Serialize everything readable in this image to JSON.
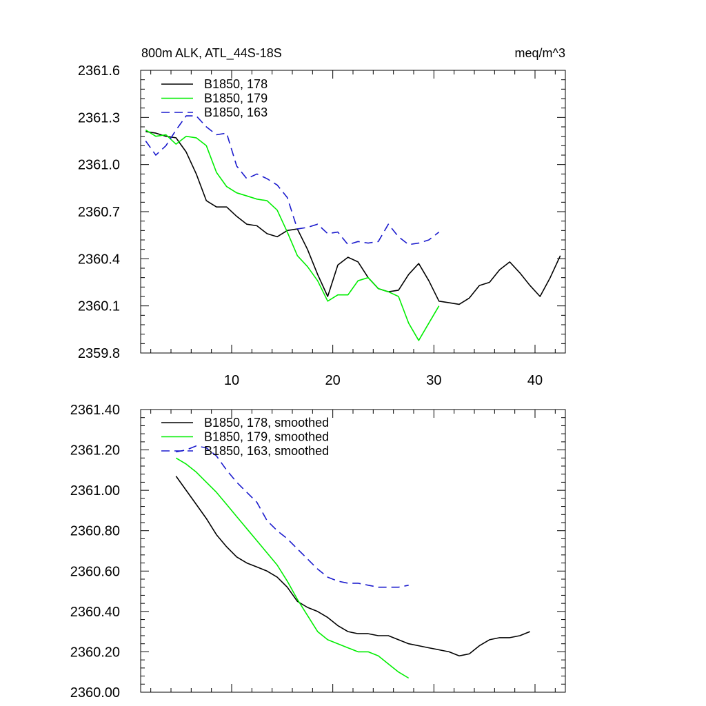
{
  "chart_data": [
    {
      "type": "line",
      "title": "800m ALK, ATL_44S-18S",
      "units": "meq/m^3",
      "xlim": [
        1,
        43
      ],
      "ylim": [
        2359.8,
        2361.6
      ],
      "xticks": [
        10,
        20,
        30,
        40
      ],
      "xtick_labels": [
        "10",
        "20",
        "30",
        "40"
      ],
      "yticks": [
        2359.8,
        2360.1,
        2360.4,
        2360.7,
        2361.0,
        2361.3,
        2361.6
      ],
      "ytick_labels": [
        "2359.8",
        "2360.1",
        "2360.4",
        "2360.7",
        "2361.0",
        "2361.3",
        "2361.6"
      ],
      "legend_position": "top-left",
      "series": [
        {
          "name": "B1850, 178",
          "color": "#000000",
          "dash": "solid",
          "x": [
            1.5,
            2.5,
            3.5,
            4.5,
            5.5,
            6.5,
            7.5,
            8.5,
            9.5,
            10.5,
            11.5,
            12.5,
            13.5,
            14.5,
            15.5,
            16.5,
            17.5,
            18.5,
            19.5,
            20.5,
            21.5,
            22.5,
            23.5,
            24.5,
            25.5,
            26.5,
            27.5,
            28.5,
            29.5,
            30.5,
            31.5,
            32.5,
            33.5,
            34.5,
            35.5,
            36.5,
            37.5,
            38.5,
            39.5,
            40.5,
            41.5,
            42.5
          ],
          "values": [
            2361.21,
            2361.2,
            2361.18,
            2361.17,
            2361.08,
            2360.94,
            2360.77,
            2360.73,
            2360.73,
            2360.67,
            2360.62,
            2360.61,
            2360.56,
            2360.54,
            2360.58,
            2360.59,
            2360.46,
            2360.3,
            2360.16,
            2360.36,
            2360.41,
            2360.38,
            2360.28,
            2360.21,
            2360.19,
            2360.2,
            2360.3,
            2360.37,
            2360.26,
            2360.13,
            2360.12,
            2360.11,
            2360.15,
            2360.23,
            2360.25,
            2360.33,
            2360.38,
            2360.31,
            2360.23,
            2360.16,
            2360.28,
            2360.42
          ]
        },
        {
          "name": "B1850, 179",
          "color": "#00ee00",
          "dash": "solid",
          "x": [
            1.5,
            2.5,
            3.5,
            4.5,
            5.5,
            6.5,
            7.5,
            8.5,
            9.5,
            10.5,
            11.5,
            12.5,
            13.5,
            14.5,
            15.5,
            16.5,
            17.5,
            18.5,
            19.5,
            20.5,
            21.5,
            22.5,
            23.5,
            24.5,
            25.5,
            26.5,
            27.5,
            28.5,
            29.5,
            30.5
          ],
          "values": [
            2361.22,
            2361.18,
            2361.19,
            2361.13,
            2361.18,
            2361.17,
            2361.12,
            2360.95,
            2360.86,
            2360.82,
            2360.8,
            2360.78,
            2360.77,
            2360.71,
            2360.57,
            2360.42,
            2360.35,
            2360.26,
            2360.13,
            2360.17,
            2360.17,
            2360.26,
            2360.28,
            2360.21,
            2360.19,
            2360.16,
            2359.99,
            2359.88,
            2359.99,
            2360.1
          ]
        },
        {
          "name": "B1850, 163",
          "color": "#1a1acd",
          "dash": "dashed",
          "x": [
            1.5,
            2.5,
            3.5,
            4.5,
            5.5,
            6.5,
            7.5,
            8.5,
            9.5,
            10.5,
            11.5,
            12.5,
            13.5,
            14.5,
            15.5,
            16.5,
            17.5,
            18.5,
            19.5,
            20.5,
            21.5,
            22.5,
            23.5,
            24.5,
            25.5,
            26.5,
            27.5,
            28.5,
            29.5,
            30.5
          ],
          "values": [
            2361.15,
            2361.06,
            2361.12,
            2361.22,
            2361.31,
            2361.31,
            2361.24,
            2361.19,
            2361.2,
            2360.99,
            2360.91,
            2360.94,
            2360.91,
            2360.87,
            2360.79,
            2360.59,
            2360.6,
            2360.62,
            2360.56,
            2360.57,
            2360.49,
            2360.51,
            2360.5,
            2360.51,
            2360.62,
            2360.54,
            2360.49,
            2360.5,
            2360.52,
            2360.57
          ]
        }
      ]
    },
    {
      "type": "line",
      "title": "",
      "xlim": [
        1,
        43
      ],
      "ylim": [
        2360.0,
        2361.4
      ],
      "xticks": [
        10,
        20,
        30,
        40
      ],
      "xtick_labels": [],
      "yticks": [
        2360.0,
        2360.2,
        2360.4,
        2360.6,
        2360.8,
        2361.0,
        2361.2,
        2361.4
      ],
      "ytick_labels": [
        "2360.00",
        "2360.20",
        "2360.40",
        "2360.60",
        "2360.80",
        "2361.00",
        "2361.20",
        "2361.40"
      ],
      "legend_position": "top-left",
      "series": [
        {
          "name": "B1850, 178, smoothed",
          "color": "#000000",
          "dash": "solid",
          "x": [
            4.5,
            5.5,
            6.5,
            7.5,
            8.5,
            9.5,
            10.5,
            11.5,
            12.5,
            13.5,
            14.5,
            15.5,
            16.5,
            17.5,
            18.5,
            19.5,
            20.5,
            21.5,
            22.5,
            23.5,
            24.5,
            25.5,
            26.5,
            27.5,
            28.5,
            29.5,
            30.5,
            31.5,
            32.5,
            33.5,
            34.5,
            35.5,
            36.5,
            37.5,
            38.5,
            39.5
          ],
          "values": [
            2361.07,
            2361.0,
            2360.93,
            2360.86,
            2360.78,
            2360.72,
            2360.67,
            2360.64,
            2360.62,
            2360.6,
            2360.57,
            2360.52,
            2360.45,
            2360.42,
            2360.4,
            2360.37,
            2360.33,
            2360.3,
            2360.29,
            2360.29,
            2360.28,
            2360.28,
            2360.26,
            2360.24,
            2360.23,
            2360.22,
            2360.21,
            2360.2,
            2360.18,
            2360.19,
            2360.23,
            2360.26,
            2360.27,
            2360.27,
            2360.28,
            2360.3
          ]
        },
        {
          "name": "B1850, 179, smoothed",
          "color": "#00ee00",
          "dash": "solid",
          "x": [
            4.5,
            5.5,
            6.5,
            7.5,
            8.5,
            9.5,
            10.5,
            11.5,
            12.5,
            13.5,
            14.5,
            15.5,
            16.5,
            17.5,
            18.5,
            19.5,
            20.5,
            21.5,
            22.5,
            23.5,
            24.5,
            25.5,
            26.5,
            27.5
          ],
          "values": [
            2361.16,
            2361.13,
            2361.09,
            2361.04,
            2360.99,
            2360.93,
            2360.87,
            2360.81,
            2360.75,
            2360.69,
            2360.63,
            2360.55,
            2360.46,
            2360.38,
            2360.3,
            2360.26,
            2360.24,
            2360.22,
            2360.2,
            2360.2,
            2360.18,
            2360.14,
            2360.1,
            2360.07
          ]
        },
        {
          "name": "B1850, 163, smoothed",
          "color": "#1a1acd",
          "dash": "dashed",
          "x": [
            4.5,
            5.5,
            6.5,
            7.5,
            8.5,
            9.5,
            10.5,
            11.5,
            12.5,
            13.5,
            14.5,
            15.5,
            16.5,
            17.5,
            18.5,
            19.5,
            20.5,
            21.5,
            22.5,
            23.5,
            24.5,
            25.5,
            26.5,
            27.5
          ],
          "values": [
            2361.19,
            2361.2,
            2361.22,
            2361.21,
            2361.17,
            2361.1,
            2361.04,
            2360.99,
            2360.94,
            2360.85,
            2360.8,
            2360.76,
            2360.71,
            2360.66,
            2360.61,
            2360.57,
            2360.55,
            2360.54,
            2360.54,
            2360.53,
            2360.52,
            2360.52,
            2360.52,
            2360.53
          ]
        }
      ]
    }
  ]
}
